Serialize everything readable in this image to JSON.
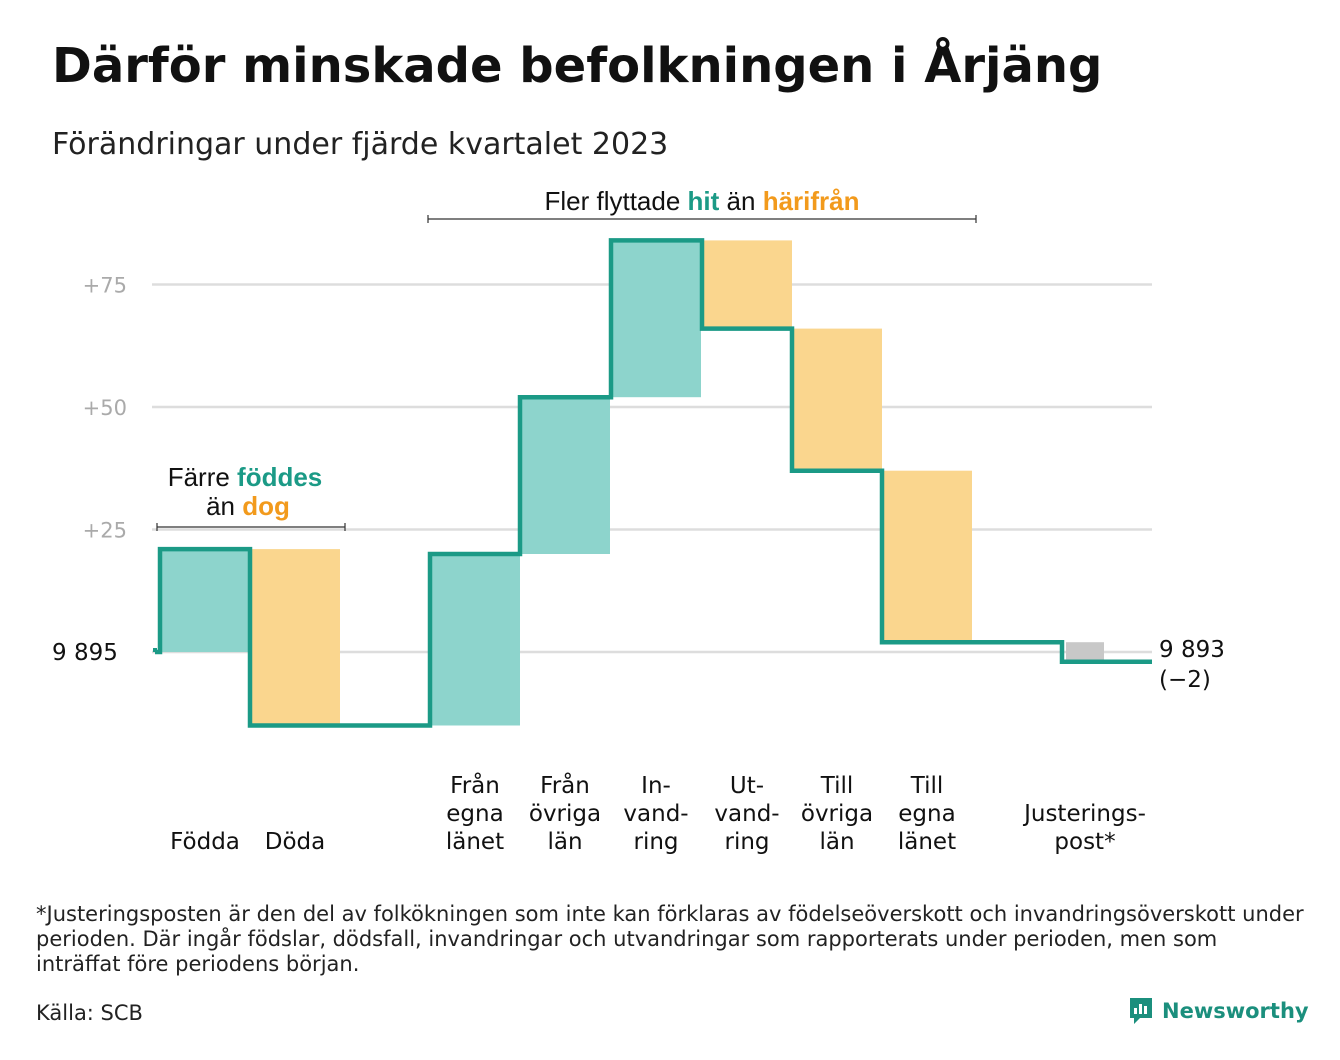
{
  "header": {
    "title": "Därför minskade befolkningen i Årjäng",
    "subtitle": "Förändringar under fjärde kvartalet 2023"
  },
  "colors": {
    "increase": "#8dd4cc",
    "decrease": "#fad68e",
    "adjustment": "#c8c8c8",
    "line": "#1b9a86",
    "teal_text": "#1b9a86",
    "orange_text": "#f29a1c",
    "grid": "#dddddd"
  },
  "chart_data": {
    "type": "waterfall",
    "start_value": 9895,
    "start_label": "9  895",
    "end_label": "9 893",
    "end_change_label": "(−2)",
    "y_ticks": [
      {
        "value": 25,
        "label": "+25"
      },
      {
        "value": 50,
        "label": "+50"
      },
      {
        "value": 75,
        "label": "+75"
      }
    ],
    "ylim": [
      -15,
      90
    ],
    "grid": true,
    "steps": [
      {
        "label": [
          "Födda"
        ],
        "change": 21,
        "kind": "increase"
      },
      {
        "label": [
          "Döda"
        ],
        "change": -36,
        "kind": "decrease"
      },
      {
        "label": [
          "Från",
          "egna",
          "länet"
        ],
        "change": 35,
        "kind": "increase"
      },
      {
        "label": [
          "Från",
          "övriga",
          "län"
        ],
        "change": 32,
        "kind": "increase"
      },
      {
        "label": [
          "In-",
          "vand-",
          "ring"
        ],
        "change": 32,
        "kind": "increase"
      },
      {
        "label": [
          "Ut-",
          "vand-",
          "ring"
        ],
        "change": -18,
        "kind": "decrease"
      },
      {
        "label": [
          "Till",
          "övriga",
          "län"
        ],
        "change": -29,
        "kind": "decrease"
      },
      {
        "label": [
          "Till",
          "egna",
          "länet"
        ],
        "change": -35,
        "kind": "decrease"
      },
      {
        "label": [
          "Justerings-",
          "post*"
        ],
        "change": -4,
        "kind": "adjustment"
      }
    ],
    "annotations": {
      "births": {
        "line1_a": "Färre ",
        "line1_b": "föddes",
        "line2_a": "än ",
        "line2_b": "dog"
      },
      "migration": {
        "part_a": "Fler flyttade ",
        "part_b": "hit",
        "part_c": " än ",
        "part_d": "härifrån"
      }
    }
  },
  "footer": {
    "footnote": "*Justeringsposten är den del av folkökningen som inte kan förklaras av födelseöverskott och invandringsöverskott under perioden. Där ingår födslar, dödsfall, invandringar och utvandringar som rapporterats under perioden, men som inträffat före periodens början.",
    "source": "Källa: SCB",
    "brand": "Newsworthy",
    "brand_icon": "newsworthy-logo-icon"
  }
}
